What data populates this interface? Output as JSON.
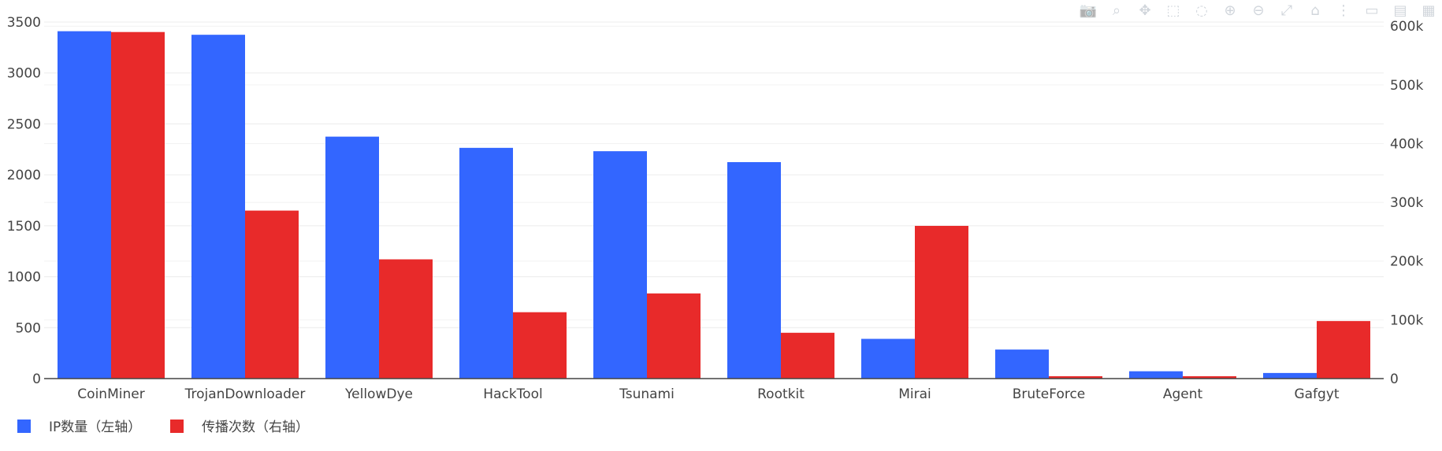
{
  "toolbar": {
    "icons": [
      "camera-icon",
      "zoom-icon",
      "pan-icon",
      "box-select-icon",
      "lasso-icon",
      "zoom-in-icon",
      "zoom-out-icon",
      "autoscale-icon",
      "reset-axes-icon",
      "spike-lines-icon",
      "hover-closest-icon",
      "hover-compare-icon",
      "plotly-logo-icon"
    ]
  },
  "chart_data": {
    "type": "bar",
    "categories": [
      "CoinMiner",
      "TrojanDownloader",
      "YellowDye",
      "HackTool",
      "Tsunami",
      "Rootkit",
      "Mirai",
      "BruteForce",
      "Agent",
      "Gafgyt"
    ],
    "series": [
      {
        "name": "IP数量（左轴）",
        "axis": "left",
        "color": "#3366ff",
        "values": [
          3410,
          3375,
          2375,
          2265,
          2232,
          2125,
          390,
          285,
          72,
          55
        ]
      },
      {
        "name": "传播次数（右轴）",
        "axis": "right",
        "color": "#e82a2a",
        "values": [
          590000,
          286000,
          203000,
          113000,
          145000,
          78000,
          260000,
          4000,
          4000,
          98000
        ]
      }
    ],
    "y_left": {
      "range": [
        0,
        3500
      ],
      "ticks": [
        0,
        500,
        1000,
        1500,
        2000,
        2500,
        3000,
        3500
      ],
      "tick_labels": [
        "0",
        "500",
        "1000",
        "1500",
        "2000",
        "2500",
        "3000",
        "3500"
      ]
    },
    "y_right": {
      "range": [
        0,
        607000
      ],
      "ticks": [
        0,
        100000,
        200000,
        300000,
        400000,
        500000,
        600000
      ],
      "tick_labels": [
        "0",
        "100k",
        "200k",
        "300k",
        "400k",
        "500k",
        "600k"
      ]
    },
    "grid": true,
    "legend_placement": "bottom-left",
    "title": "",
    "xlabel": "",
    "ylabel": ""
  }
}
